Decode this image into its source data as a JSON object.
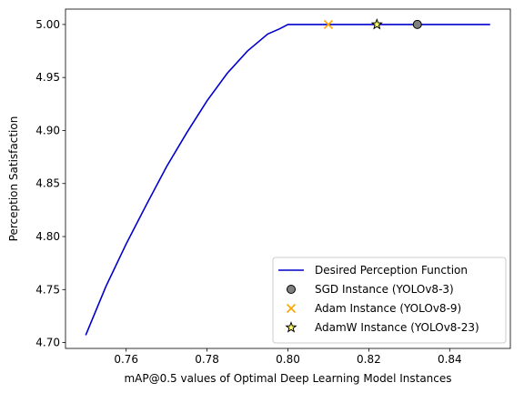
{
  "chart_data": {
    "type": "line",
    "xlabel": "mAP@0.5 values of Optimal Deep Learning Model Instances",
    "ylabel": "Perception Satisfaction",
    "xlim": [
      0.745,
      0.855
    ],
    "ylim": [
      4.6945,
      5.0145
    ],
    "xticks": [
      0.76,
      0.78,
      0.8,
      0.82,
      0.84
    ],
    "xtick_labels": [
      "0.76",
      "0.78",
      "0.80",
      "0.82",
      "0.84"
    ],
    "yticks": [
      4.7,
      4.75,
      4.8,
      4.85,
      4.9,
      4.95,
      5.0
    ],
    "ytick_labels": [
      "4.70",
      "4.75",
      "4.80",
      "4.85",
      "4.90",
      "4.95",
      "5.00"
    ],
    "grid": false,
    "legend_position": "lower-right",
    "series": [
      {
        "name": "Desired Perception Function",
        "kind": "line",
        "color": "#0000cc",
        "x": [
          0.75,
          0.755,
          0.76,
          0.765,
          0.77,
          0.775,
          0.78,
          0.785,
          0.79,
          0.795,
          0.798,
          0.8,
          0.805,
          0.81,
          0.815,
          0.82,
          0.825,
          0.83,
          0.835,
          0.84,
          0.845,
          0.85
        ],
        "y": [
          4.707,
          4.753,
          4.793,
          4.83,
          4.866,
          4.898,
          4.928,
          4.954,
          4.975,
          4.991,
          4.996,
          5.0,
          5.0,
          5.0,
          5.0,
          5.0,
          5.0,
          5.0,
          5.0,
          5.0,
          5.0,
          5.0
        ]
      },
      {
        "name": "SGD Instance (YOLOv8-3)",
        "kind": "marker",
        "marker": "circle",
        "color": "#808080",
        "x": [
          0.832
        ],
        "y": [
          5.0
        ]
      },
      {
        "name": "Adam Instance (YOLOv8-9)",
        "kind": "marker",
        "marker": "x",
        "color": "#ffa500",
        "x": [
          0.81
        ],
        "y": [
          5.0
        ]
      },
      {
        "name": "AdamW Instance (YOLOv8-23)",
        "kind": "marker",
        "marker": "star",
        "color": "#ffff66",
        "x": [
          0.822
        ],
        "y": [
          5.0
        ]
      }
    ]
  }
}
